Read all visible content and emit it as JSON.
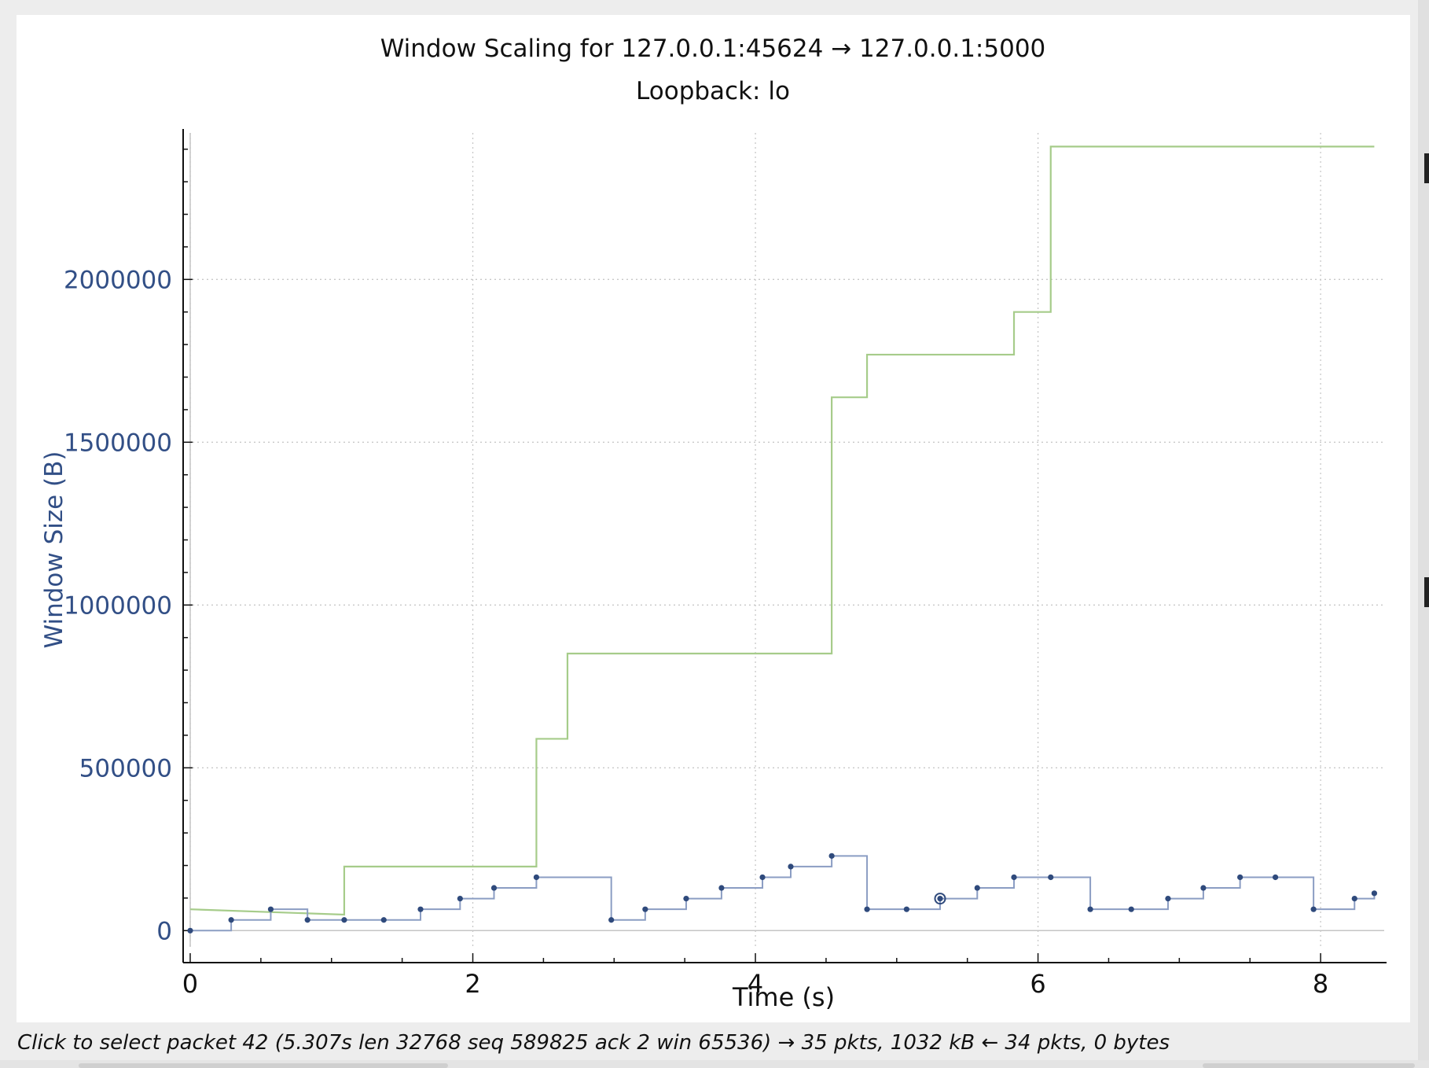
{
  "window": {
    "status_text": "Click to select packet 42 (5.307s len 32768 seq 589825 ack 2 win 65536) → 35 pkts, 1032 kB ← 34 pkts, 0 bytes"
  },
  "colors": {
    "rwin_line": "#a6cc8a",
    "bytes_out": "#8b9dc3",
    "dot": "#2f4a7c",
    "grid": "#c8c8c8"
  },
  "chart_data": {
    "type": "line",
    "title": "Window Scaling for 127.0.0.1:45624 → 127.0.0.1:5000",
    "subtitle": "Loopback: lo",
    "xlabel": "Time (s)",
    "ylabel": "Window Size (B)",
    "xlim": [
      -0.05,
      8.45
    ],
    "ylim": [
      -50000,
      2450000
    ],
    "x_ticks": [
      0,
      2,
      4,
      6,
      8
    ],
    "x_tick_labels": [
      "0",
      "2",
      "4",
      "6",
      "8"
    ],
    "y_ticks": [
      0,
      500000,
      1000000,
      1500000,
      2000000
    ],
    "y_tick_labels": [
      "0",
      "500000",
      "1000000",
      "1500000",
      "2000000"
    ],
    "grid": true,
    "series": [
      {
        "kind": "step",
        "points": [
          [
            0,
            65536
          ],
          [
            1.09,
            49000
          ],
          [
            1.09,
            196608
          ],
          [
            2.45,
            196608
          ],
          [
            2.45,
            589000
          ],
          [
            2.67,
            589000
          ],
          [
            2.67,
            851000
          ],
          [
            4.54,
            851000
          ],
          [
            4.54,
            1638000
          ],
          [
            4.79,
            1638000
          ],
          [
            4.79,
            1769000
          ],
          [
            5.83,
            1769000
          ],
          [
            5.83,
            1900000
          ],
          [
            6.09,
            1900000
          ],
          [
            6.09,
            2408000
          ],
          [
            8.38,
            2408000
          ]
        ]
      },
      {
        "kind": "step",
        "points": [
          [
            0.0,
            0
          ],
          [
            0.29,
            32768
          ],
          [
            0.57,
            65536
          ],
          [
            0.83,
            32768
          ],
          [
            1.09,
            32768
          ],
          [
            1.37,
            32768
          ],
          [
            1.63,
            65536
          ],
          [
            1.91,
            98304
          ],
          [
            2.15,
            131072
          ],
          [
            2.45,
            163840
          ],
          [
            2.98,
            32768
          ],
          [
            3.22,
            65536
          ],
          [
            3.51,
            98304
          ],
          [
            3.76,
            131072
          ],
          [
            4.05,
            163840
          ],
          [
            4.25,
            196608
          ],
          [
            4.54,
            229376
          ],
          [
            4.79,
            65536
          ],
          [
            5.07,
            65536
          ],
          [
            5.307,
            98304
          ],
          [
            5.57,
            131072
          ],
          [
            5.83,
            163840
          ],
          [
            6.09,
            163840
          ],
          [
            6.37,
            65536
          ],
          [
            6.66,
            65536
          ],
          [
            6.92,
            98304
          ],
          [
            7.17,
            131072
          ],
          [
            7.43,
            163840
          ],
          [
            7.68,
            163840
          ],
          [
            7.95,
            65536
          ],
          [
            8.24,
            98304
          ],
          [
            8.38,
            114688
          ]
        ]
      }
    ],
    "highlight_point": [
      5.307,
      98304
    ]
  }
}
